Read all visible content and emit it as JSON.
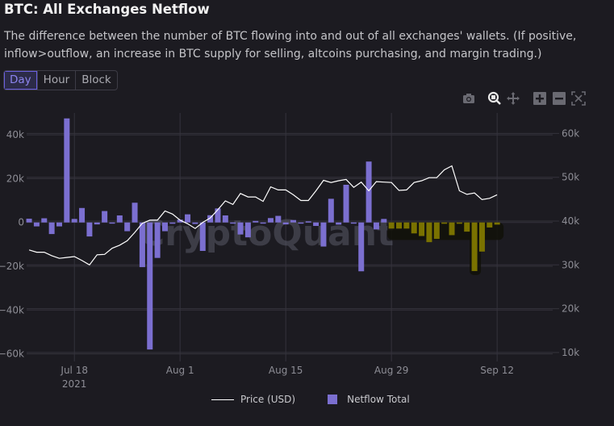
{
  "header": {
    "title": "BTC: All Exchanges Netflow",
    "description": "The difference between the number of BTC flowing into and out of all exchanges' wallets. (If positive, inflow>outflow, an increase in BTC supply for selling, altcoins purchasing, and margin trading.)"
  },
  "tabs": [
    {
      "label": "Day",
      "active": true
    },
    {
      "label": "Hour",
      "active": false
    },
    {
      "label": "Block",
      "active": false
    }
  ],
  "toolbar": {
    "icons": [
      "camera-icon",
      "zoom-icon",
      "pan-icon",
      "zoom-in-icon",
      "zoom-out-icon",
      "autoscale-icon"
    ]
  },
  "watermark": "CryptoQuant",
  "colors": {
    "background": "#1c1b21",
    "netflow": "#7b6fd0",
    "price": "#ffffff",
    "highlight": "#7a7200"
  },
  "chart_data": {
    "type": "bar+line",
    "x_range": [
      "2021-07-11",
      "2021-09-20"
    ],
    "x_ticks": [
      {
        "date": "2021-07-18",
        "label": "Jul 18",
        "sublabel": "2021"
      },
      {
        "date": "2021-08-01",
        "label": "Aug 1"
      },
      {
        "date": "2021-08-15",
        "label": "Aug 15"
      },
      {
        "date": "2021-08-29",
        "label": "Aug 29"
      },
      {
        "date": "2021-09-12",
        "label": "Sep 12"
      }
    ],
    "y_left": {
      "range": [
        -61000,
        51000
      ],
      "ticks": [
        40000,
        20000,
        0,
        -20000,
        -40000,
        -60000
      ],
      "tick_labels": [
        "40k",
        "20k",
        "0",
        "−20k",
        "−40k",
        "−60k"
      ]
    },
    "y_right": {
      "range": [
        9500,
        65000
      ],
      "ticks": [
        60000,
        50000,
        40000,
        30000,
        20000,
        10000
      ],
      "tick_labels": [
        "60k",
        "50k",
        "40k",
        "30k",
        "20k",
        "10k"
      ]
    },
    "grid": true,
    "legend_placement": "bottom",
    "highlighted_range": [
      "2021-08-29",
      "2021-09-12"
    ],
    "start_date": "2021-07-12",
    "series": [
      {
        "name": "Price (USD)",
        "axis": "right",
        "type": "line",
        "values": [
          33400,
          32900,
          32900,
          32100,
          31500,
          31700,
          31900,
          31000,
          30000,
          32300,
          32400,
          33800,
          34500,
          35500,
          37400,
          39500,
          40200,
          40200,
          42300,
          41600,
          40200,
          39400,
          38300,
          39700,
          40700,
          42600,
          44600,
          43800,
          46300,
          45500,
          45500,
          44500,
          47800,
          47100,
          47100,
          46000,
          44700,
          44700,
          46900,
          49300,
          48800,
          49200,
          49500,
          47700,
          48900,
          46900,
          49000,
          48900,
          48800,
          47000,
          47100,
          48800,
          49200,
          49900,
          49900,
          51700,
          52600,
          46900,
          46100,
          46400,
          44900,
          45200,
          46000
        ]
      },
      {
        "name": "Netflow Total",
        "axis": "left",
        "type": "bar",
        "values": [
          1700,
          -1800,
          1900,
          -5300,
          -1800,
          47500,
          1600,
          6600,
          -6400,
          -900,
          5200,
          -500,
          3200,
          -4000,
          9000,
          -20400,
          -58000,
          -16200,
          -4000,
          -600,
          1300,
          3700,
          -700,
          -13000,
          3300,
          6400,
          3200,
          -500,
          -5500,
          -6800,
          700,
          -500,
          2000,
          3000,
          -900,
          1100,
          -500,
          500,
          -1600,
          -11000,
          10800,
          -1000,
          17200,
          -500,
          -22300,
          27800,
          -3200,
          1600,
          -2800,
          -2800,
          -2800,
          -5000,
          -6200,
          -9000,
          -7500,
          -600,
          -5800,
          -600,
          -4200,
          -22200,
          -13300,
          -2300,
          -1000
        ]
      }
    ]
  }
}
